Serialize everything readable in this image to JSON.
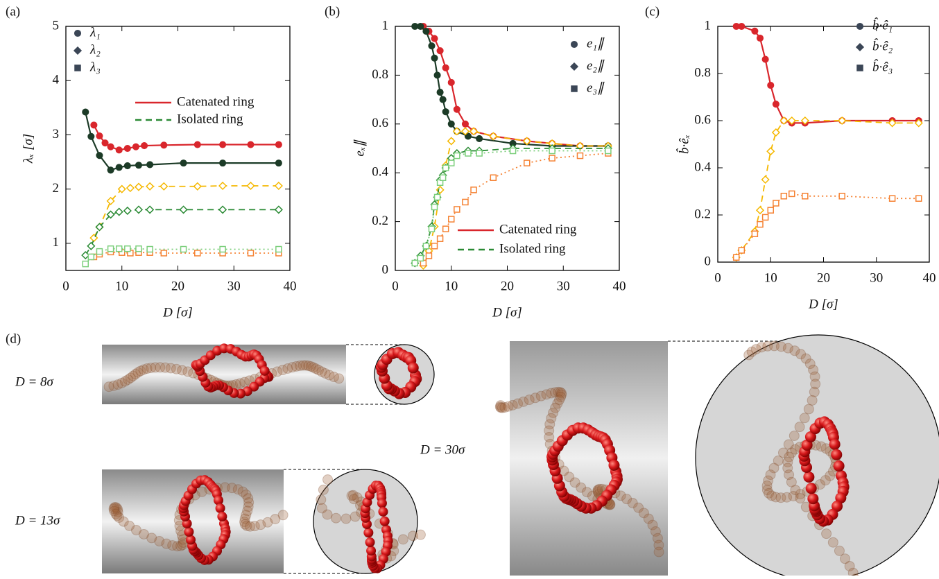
{
  "chart_data": [
    {
      "type": "line",
      "panel_label": "(a)",
      "xlabel": "D [σ]",
      "ylabel": "λₓ [σ]",
      "xlim": [
        0,
        40
      ],
      "ylim": [
        0.5,
        5
      ],
      "xticks": [
        0,
        10,
        20,
        30,
        40
      ],
      "yticks": [
        1,
        2,
        3,
        4,
        5
      ],
      "legend_markers": [
        {
          "label": "λ₁",
          "marker": "circle"
        },
        {
          "label": "λ₂",
          "marker": "diamond"
        },
        {
          "label": "λ₃",
          "marker": "square"
        }
      ],
      "legend_lines": [
        {
          "label": "Catenated ring",
          "color": "#d9262c",
          "dash": "solid"
        },
        {
          "label": "Isolated ring",
          "color": "#2a8a34",
          "dash": "dashed"
        }
      ],
      "series": [
        {
          "color": "#d9262c",
          "marker": "circle",
          "filled": true,
          "dash": "solid",
          "x": [
            5,
            6,
            7,
            8,
            9.5,
            11,
            12.5,
            14,
            17.5,
            23.5,
            28,
            33,
            38
          ],
          "values": [
            3.18,
            2.98,
            2.85,
            2.78,
            2.72,
            2.75,
            2.78,
            2.8,
            2.81,
            2.82,
            2.82,
            2.82,
            2.82
          ]
        },
        {
          "color": "#1c3b27",
          "marker": "circle",
          "filled": true,
          "dash": "solid",
          "x": [
            3.5,
            4.5,
            6,
            8,
            9.5,
            11,
            13,
            15,
            21,
            28,
            38
          ],
          "values": [
            3.42,
            2.97,
            2.62,
            2.35,
            2.4,
            2.43,
            2.44,
            2.45,
            2.48,
            2.48,
            2.48
          ]
        },
        {
          "color": "#f5b800",
          "marker": "diamond",
          "filled": false,
          "dash": "dashed",
          "x": [
            5,
            6,
            8,
            10,
            11.5,
            13,
            15,
            17.5,
            23.5,
            28,
            33,
            38
          ],
          "values": [
            1.1,
            1.3,
            1.78,
            2.0,
            2.02,
            2.04,
            2.05,
            2.05,
            2.05,
            2.06,
            2.06,
            2.06
          ]
        },
        {
          "color": "#2a8a34",
          "marker": "diamond",
          "filled": false,
          "dash": "dashed",
          "x": [
            3.5,
            4.5,
            6,
            8,
            9.5,
            11,
            13,
            15,
            21,
            28,
            38
          ],
          "values": [
            0.78,
            0.95,
            1.3,
            1.53,
            1.58,
            1.6,
            1.62,
            1.62,
            1.62,
            1.62,
            1.62
          ]
        },
        {
          "color": "#f58233",
          "marker": "square",
          "filled": false,
          "dash": "dotted",
          "x": [
            5,
            6,
            8,
            10,
            11.5,
            13,
            15,
            17.5,
            23.5,
            28,
            33,
            38
          ],
          "values": [
            0.75,
            0.8,
            0.84,
            0.83,
            0.82,
            0.83,
            0.83,
            0.82,
            0.82,
            0.82,
            0.82,
            0.82
          ]
        },
        {
          "color": "#7ccf7c",
          "marker": "square",
          "filled": false,
          "dash": "dotted",
          "x": [
            3.5,
            4.5,
            6,
            8,
            9.5,
            11,
            13,
            15,
            21,
            28,
            38
          ],
          "values": [
            0.62,
            0.75,
            0.85,
            0.9,
            0.9,
            0.9,
            0.9,
            0.89,
            0.89,
            0.89,
            0.89
          ]
        }
      ]
    },
    {
      "type": "line",
      "panel_label": "(b)",
      "xlabel": "D [σ]",
      "ylabel": "eₓ∥",
      "xlim": [
        0,
        40
      ],
      "ylim": [
        0,
        1
      ],
      "xticks": [
        0,
        10,
        20,
        30,
        40
      ],
      "yticks": [
        0,
        0.2,
        0.4,
        0.6,
        0.8,
        1
      ],
      "legend_markers": [
        {
          "label": "e₁∥",
          "marker": "circle"
        },
        {
          "label": "e₂∥",
          "marker": "diamond"
        },
        {
          "label": "e₃∥",
          "marker": "square"
        }
      ],
      "legend_lines": [
        {
          "label": "Catenated ring",
          "color": "#d9262c",
          "dash": "solid"
        },
        {
          "label": "Isolated ring",
          "color": "#2a8a34",
          "dash": "dashed"
        }
      ],
      "series": [
        {
          "color": "#d9262c",
          "marker": "circle",
          "filled": true,
          "dash": "solid",
          "x": [
            5,
            6,
            7,
            8,
            9,
            10,
            11,
            12.5,
            14,
            17.5,
            23.5,
            28,
            33,
            38
          ],
          "values": [
            1.0,
            0.98,
            0.95,
            0.9,
            0.83,
            0.77,
            0.66,
            0.6,
            0.57,
            0.55,
            0.53,
            0.52,
            0.51,
            0.51
          ]
        },
        {
          "color": "#1c3b27",
          "marker": "circle",
          "filled": true,
          "dash": "solid",
          "x": [
            3.5,
            4.5,
            5.5,
            6.5,
            7,
            7.5,
            8,
            8.5,
            9,
            10,
            11,
            13,
            15,
            21,
            28,
            38
          ],
          "values": [
            1.0,
            1.0,
            0.98,
            0.92,
            0.87,
            0.8,
            0.73,
            0.7,
            0.65,
            0.6,
            0.57,
            0.55,
            0.54,
            0.52,
            0.51,
            0.51
          ]
        },
        {
          "color": "#f5b800",
          "marker": "diamond",
          "filled": false,
          "dash": "dashed",
          "x": [
            5,
            6,
            7,
            8,
            9,
            10,
            11,
            12.5,
            14,
            17.5,
            23.5,
            28,
            33,
            38
          ],
          "values": [
            0.02,
            0.08,
            0.18,
            0.33,
            0.43,
            0.53,
            0.57,
            0.57,
            0.57,
            0.55,
            0.53,
            0.52,
            0.51,
            0.51
          ]
        },
        {
          "color": "#2a8a34",
          "marker": "diamond",
          "filled": false,
          "dash": "dashed",
          "x": [
            3.5,
            4.5,
            5.5,
            6.5,
            7,
            7.5,
            8,
            8.5,
            9,
            10,
            11,
            13,
            15,
            21,
            28,
            38
          ],
          "values": [
            0.03,
            0.06,
            0.1,
            0.18,
            0.27,
            0.3,
            0.37,
            0.39,
            0.42,
            0.46,
            0.48,
            0.49,
            0.49,
            0.5,
            0.5,
            0.5
          ]
        },
        {
          "color": "#f58233",
          "marker": "square",
          "filled": false,
          "dash": "dotted",
          "x": [
            5,
            6,
            7,
            8,
            9,
            10,
            11,
            12.5,
            14,
            17.5,
            23.5,
            28,
            33,
            38
          ],
          "values": [
            0.03,
            0.06,
            0.1,
            0.13,
            0.17,
            0.21,
            0.25,
            0.28,
            0.33,
            0.38,
            0.44,
            0.46,
            0.47,
            0.48
          ]
        },
        {
          "color": "#7ccf7c",
          "marker": "square",
          "filled": false,
          "dash": "dotted",
          "x": [
            3.5,
            4.5,
            5.5,
            6.5,
            7,
            7.5,
            8,
            8.5,
            9,
            10,
            11,
            13,
            15,
            21,
            28,
            38
          ],
          "values": [
            0.03,
            0.05,
            0.1,
            0.17,
            0.26,
            0.3,
            0.36,
            0.38,
            0.42,
            0.44,
            0.47,
            0.48,
            0.48,
            0.49,
            0.49,
            0.49
          ]
        }
      ]
    },
    {
      "type": "line",
      "panel_label": "(c)",
      "xlabel": "D [σ]",
      "ylabel": "b̂·êₓ",
      "xlim": [
        0,
        40
      ],
      "ylim": [
        0,
        1
      ],
      "xticks": [
        0,
        10,
        20,
        30,
        40
      ],
      "yticks": [
        0,
        0.2,
        0.4,
        0.6,
        0.8,
        1
      ],
      "legend_markers": [
        {
          "label": "b̂·ê₁",
          "marker": "circle"
        },
        {
          "label": "b̂·ê₂",
          "marker": "diamond"
        },
        {
          "label": "b̂·ê₃",
          "marker": "square"
        }
      ],
      "series": [
        {
          "color": "#d9262c",
          "marker": "circle",
          "filled": true,
          "dash": "solid",
          "x": [
            3.5,
            4.5,
            7,
            8,
            9,
            10,
            11,
            12.5,
            14,
            16.5,
            23.5,
            33,
            38
          ],
          "values": [
            1.0,
            1.0,
            0.98,
            0.95,
            0.86,
            0.75,
            0.67,
            0.6,
            0.59,
            0.59,
            0.6,
            0.6,
            0.6
          ]
        },
        {
          "color": "#f5b800",
          "marker": "diamond",
          "filled": false,
          "dash": "dashed",
          "x": [
            3.5,
            4.5,
            7,
            8,
            9,
            10,
            11,
            12.5,
            14,
            16.5,
            23.5,
            33,
            38
          ],
          "values": [
            0.02,
            0.05,
            0.13,
            0.22,
            0.35,
            0.47,
            0.55,
            0.6,
            0.6,
            0.6,
            0.6,
            0.59,
            0.59
          ]
        },
        {
          "color": "#f58233",
          "marker": "square",
          "filled": false,
          "dash": "dotted",
          "x": [
            3.5,
            4.5,
            7,
            8,
            9,
            10,
            11,
            12.5,
            14,
            16.5,
            23.5,
            33,
            38
          ],
          "values": [
            0.02,
            0.05,
            0.12,
            0.16,
            0.19,
            0.22,
            0.25,
            0.28,
            0.29,
            0.28,
            0.28,
            0.27,
            0.27
          ]
        }
      ]
    }
  ],
  "panel_d": {
    "label": "(d)",
    "cases": [
      "D = 8σ",
      "D = 13σ",
      "D = 30σ"
    ]
  }
}
